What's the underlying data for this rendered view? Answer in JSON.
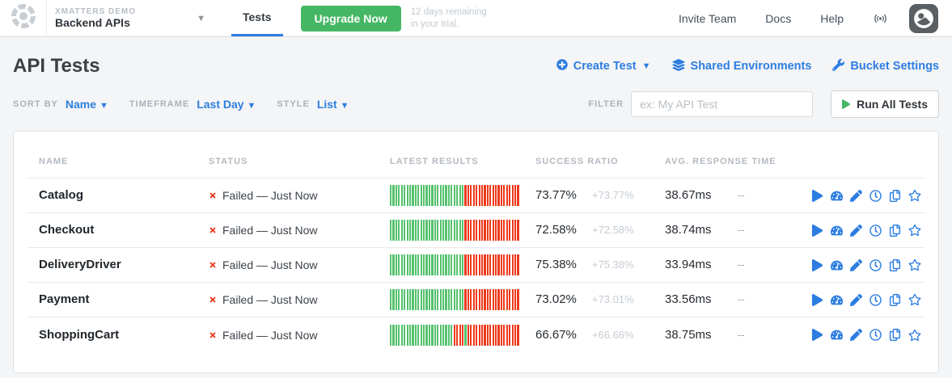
{
  "colors": {
    "accent_blue": "#2d7de1",
    "upgrade_green": "#45b764",
    "bar_pass_green": "#55c16e",
    "bar_fail_red": "#ee3a1c",
    "status_x_red": "#e8391c",
    "page_background": "#f4f5f6"
  },
  "topbar": {
    "org_label": "XMATTERS DEMO",
    "bucket_name": "Backend APIs",
    "tab_tests": "Tests",
    "upgrade_button": "Upgrade Now",
    "trial_line1": "12 days remaining",
    "trial_line2": "in your trial.",
    "nav_invite": "Invite Team",
    "nav_docs": "Docs",
    "nav_help": "Help"
  },
  "header": {
    "title": "API Tests",
    "create_test": "Create Test",
    "shared_environments": "Shared Environments",
    "bucket_settings": "Bucket Settings"
  },
  "controls": {
    "sort_by_label": "SORT BY",
    "sort_by_value": "Name",
    "timeframe_label": "TIMEFRAME",
    "timeframe_value": "Last Day",
    "style_label": "STYLE",
    "style_value": "List",
    "filter_label": "FILTER",
    "filter_placeholder": "ex: My API Test",
    "run_all_tests": "Run All Tests"
  },
  "table": {
    "headers": {
      "name": "NAME",
      "status": "STATUS",
      "latest_results": "LATEST RESULTS",
      "success_ratio": "SUCCESS RATIO",
      "avg_response_time": "AVG. RESPONSE TIME"
    },
    "rows": [
      {
        "name": "Catalog",
        "status": "Failed — Just Now",
        "results": "gggggggggggggggggggggggggggrrrrrrrrrrrrrrrrrrrr",
        "success": "73.77%",
        "delta": "+73.77%",
        "avg": "38.67ms",
        "dash": "--"
      },
      {
        "name": "Checkout",
        "status": "Failed — Just Now",
        "results": "gggggggggggggggggggggggggggrrrrrrrrrrrrrrrrrrrr",
        "success": "72.58%",
        "delta": "+72.58%",
        "avg": "38.74ms",
        "dash": "--"
      },
      {
        "name": "DeliveryDriver",
        "status": "Failed — Just Now",
        "results": "gggggggggggggggggggggggggggrrrrrrrrrrrrrrrrrrrr",
        "success": "75.38%",
        "delta": "+75.38%",
        "avg": "33.94ms",
        "dash": "--"
      },
      {
        "name": "Payment",
        "status": "Failed — Just Now",
        "results": "gggggggggggggggggggggggggggrrrrrrrrrrrrrrrrrrrr",
        "success": "73.02%",
        "delta": "+73.01%",
        "avg": "33.56ms",
        "dash": "--"
      },
      {
        "name": "ShoppingCart",
        "status": "Failed — Just Now",
        "results": "gggggggggggggggggggggggrrrrgrrrrrrrrrrrrrrrrrrr",
        "success": "66.67%",
        "delta": "+66.66%",
        "avg": "38.75ms",
        "dash": "--"
      }
    ]
  }
}
